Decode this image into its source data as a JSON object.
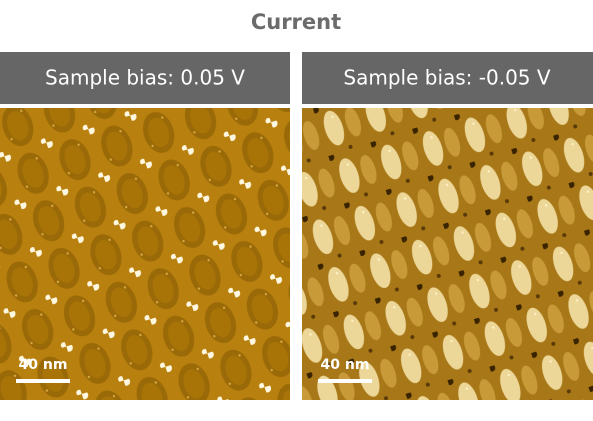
{
  "title": "Current",
  "panels": [
    {
      "label": "Sample bias: 0.05 V",
      "scale_bar": "40 nm"
    },
    {
      "label": "Sample bias: -0.05 V",
      "scale_bar": "40 nm"
    }
  ]
}
